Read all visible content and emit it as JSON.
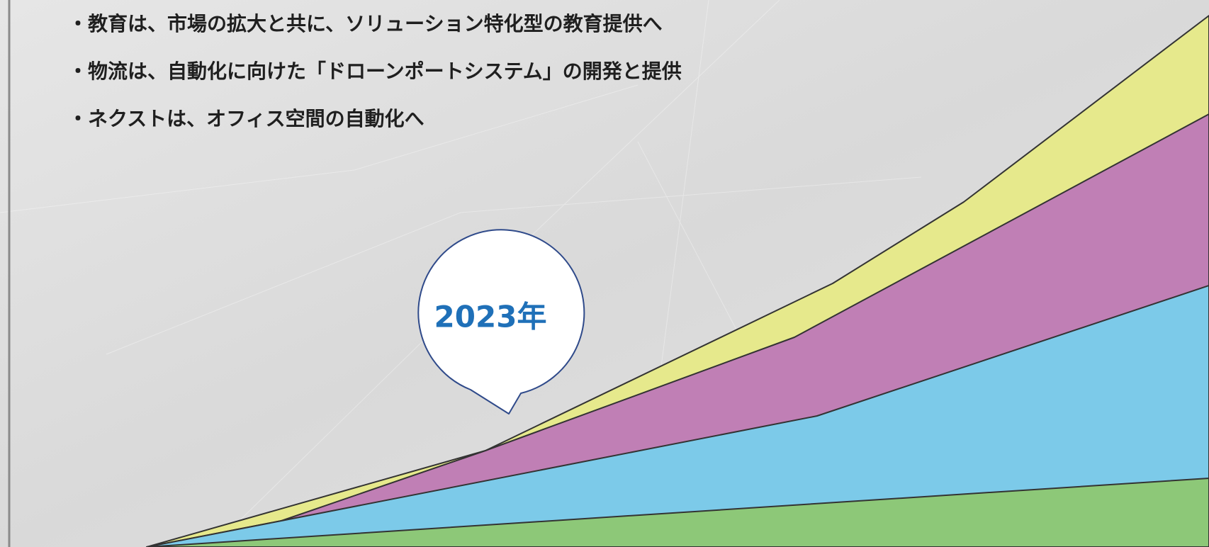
{
  "bullets": [
    "・教育は、市場の拡大と共に、ソリューション特化型の教育提供へ",
    "・物流は、自動化に向けた「ドローンポートシステム」の開発と提供",
    "・ネクストは、オフィス空間の自動化へ"
  ],
  "callout": {
    "label": "2023年"
  }
}
